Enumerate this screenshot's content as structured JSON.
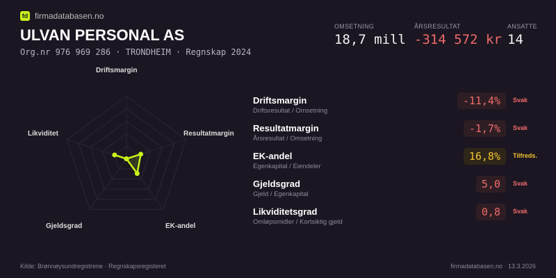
{
  "brand": {
    "name": "firmadatabasen.no",
    "logo": "fd"
  },
  "company": {
    "name": "ULVAN  PERSONAL AS",
    "subtitle": "Org.nr 976 969 286  ·  TRONDHEIM  ·  Regnskap 2024"
  },
  "kpis": [
    {
      "label": "OMSETNING",
      "value": "18,7 mill"
    },
    {
      "label": "ÅRSRESULTAT",
      "value": "-314 572 kr",
      "negative": true
    },
    {
      "label": "ANSATTE",
      "value": "14"
    }
  ],
  "colors": {
    "accent": "#c8f21a",
    "weak": "#ef6b6b",
    "ok": "#f2c230",
    "background": "#1b1621"
  },
  "chart_data": {
    "type": "radar",
    "axes": [
      "Driftsmargin",
      "Resultatmargin",
      "EK-andel",
      "Gjeldsgrad",
      "Likviditet"
    ],
    "values": [
      0,
      0.24,
      0.29,
      0,
      0.2
    ],
    "range": [
      0,
      1
    ],
    "rings": 5
  },
  "ratios": [
    {
      "name": "Driftsmargin",
      "formula": "Driftsresultat / Omsetning",
      "value": "-11,4%",
      "status": "Svak",
      "level": "weak"
    },
    {
      "name": "Resultatmargin",
      "formula": "Årsresultat / Omsetning",
      "value": "-1,7%",
      "status": "Svak",
      "level": "weak"
    },
    {
      "name": "EK-andel",
      "formula": "Egenkapital / Eiendeler",
      "value": "16,8%",
      "status": "Tilfreds.",
      "level": "ok"
    },
    {
      "name": "Gjeldsgrad",
      "formula": "Gjeld / Egenkapital",
      "value": "5,0",
      "status": "Svak",
      "level": "weak"
    },
    {
      "name": "Likviditetsgrad",
      "formula": "Omløpsmidler / Kortsiktig gjeld",
      "value": "0,8",
      "status": "Svak",
      "level": "weak"
    }
  ],
  "footer": {
    "source": "Kilde: Brønnøysundregistrene · Regnskapsregisteret",
    "site": "firmadatabasen.no · 13.3.2026"
  }
}
